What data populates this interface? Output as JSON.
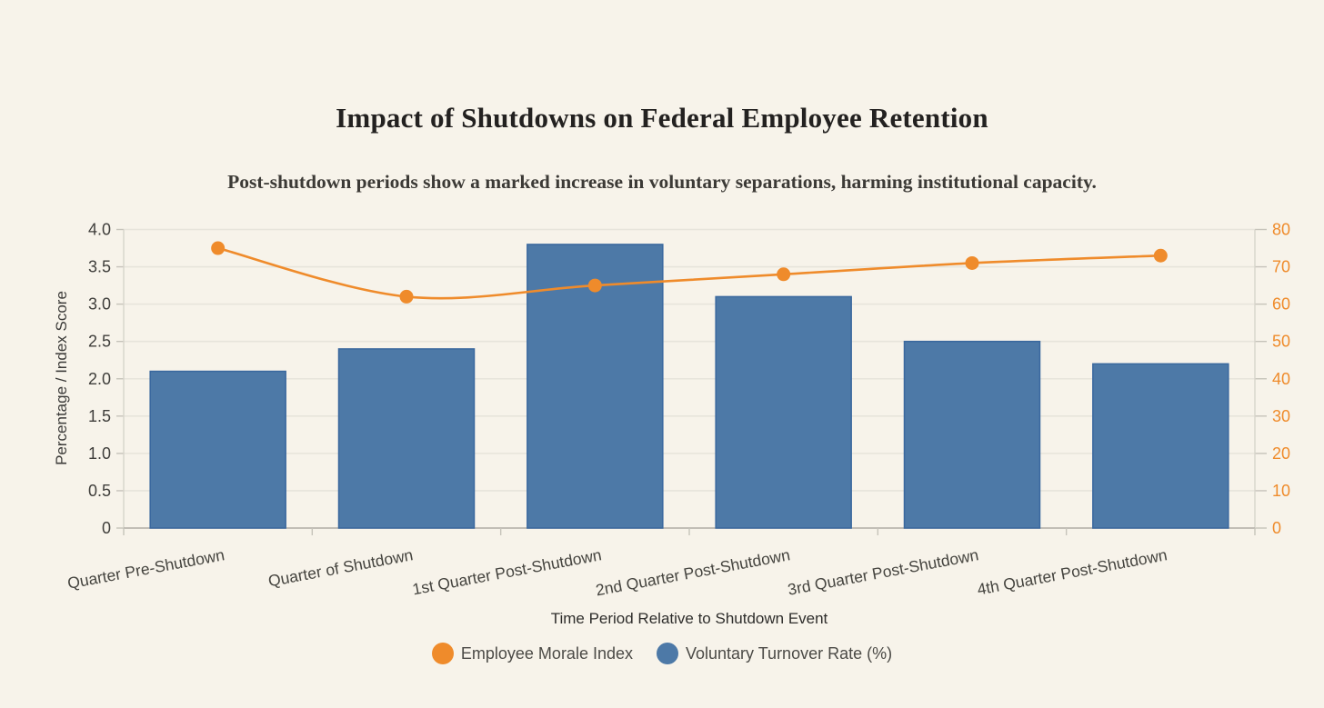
{
  "chart_data": {
    "type": "bar+line-dual-axis",
    "title": "Impact of Shutdowns on Federal Employee Retention",
    "subtitle": "Post-shutdown periods show a marked increase in voluntary separations, harming institutional capacity.",
    "categories": [
      "Quarter Pre-Shutdown",
      "Quarter of Shutdown",
      "1st Quarter Post-Shutdown",
      "2nd Quarter Post-Shutdown",
      "3rd Quarter Post-Shutdown",
      "4th Quarter Post-Shutdown"
    ],
    "series": [
      {
        "name": "Voluntary Turnover Rate (%)",
        "type": "bar",
        "axis": "left",
        "color": "#4d79a7",
        "border_color": "#3a689e",
        "values": [
          2.1,
          2.4,
          3.8,
          3.1,
          2.5,
          2.2
        ]
      },
      {
        "name": "Employee Morale Index",
        "type": "line",
        "axis": "right",
        "color": "#ef8b2b",
        "values": [
          75,
          62,
          65,
          68,
          71,
          73
        ]
      }
    ],
    "xlabel": "Time Period Relative to Shutdown Event",
    "ylabel_left": "Percentage / Index Score",
    "axes": {
      "left": {
        "min": 0,
        "max": 4,
        "step": 0.5,
        "ticks": [
          "0",
          "0.5",
          "1.0",
          "1.5",
          "2.0",
          "2.5",
          "3.0",
          "3.5",
          "4.0"
        ],
        "label_color": "#3f3e3b"
      },
      "right": {
        "min": 0,
        "max": 80,
        "step": 10,
        "ticks": [
          "0",
          "10",
          "20",
          "30",
          "40",
          "50",
          "60",
          "70",
          "80"
        ],
        "label_color": "#ef8b2b"
      }
    },
    "grid": true,
    "legend_position": "bottom"
  },
  "legend": {
    "items": [
      {
        "label": "Employee Morale Index",
        "color": "#ef8b2b"
      },
      {
        "label": "Voluntary Turnover Rate (%)",
        "color": "#4d79a7"
      }
    ]
  }
}
